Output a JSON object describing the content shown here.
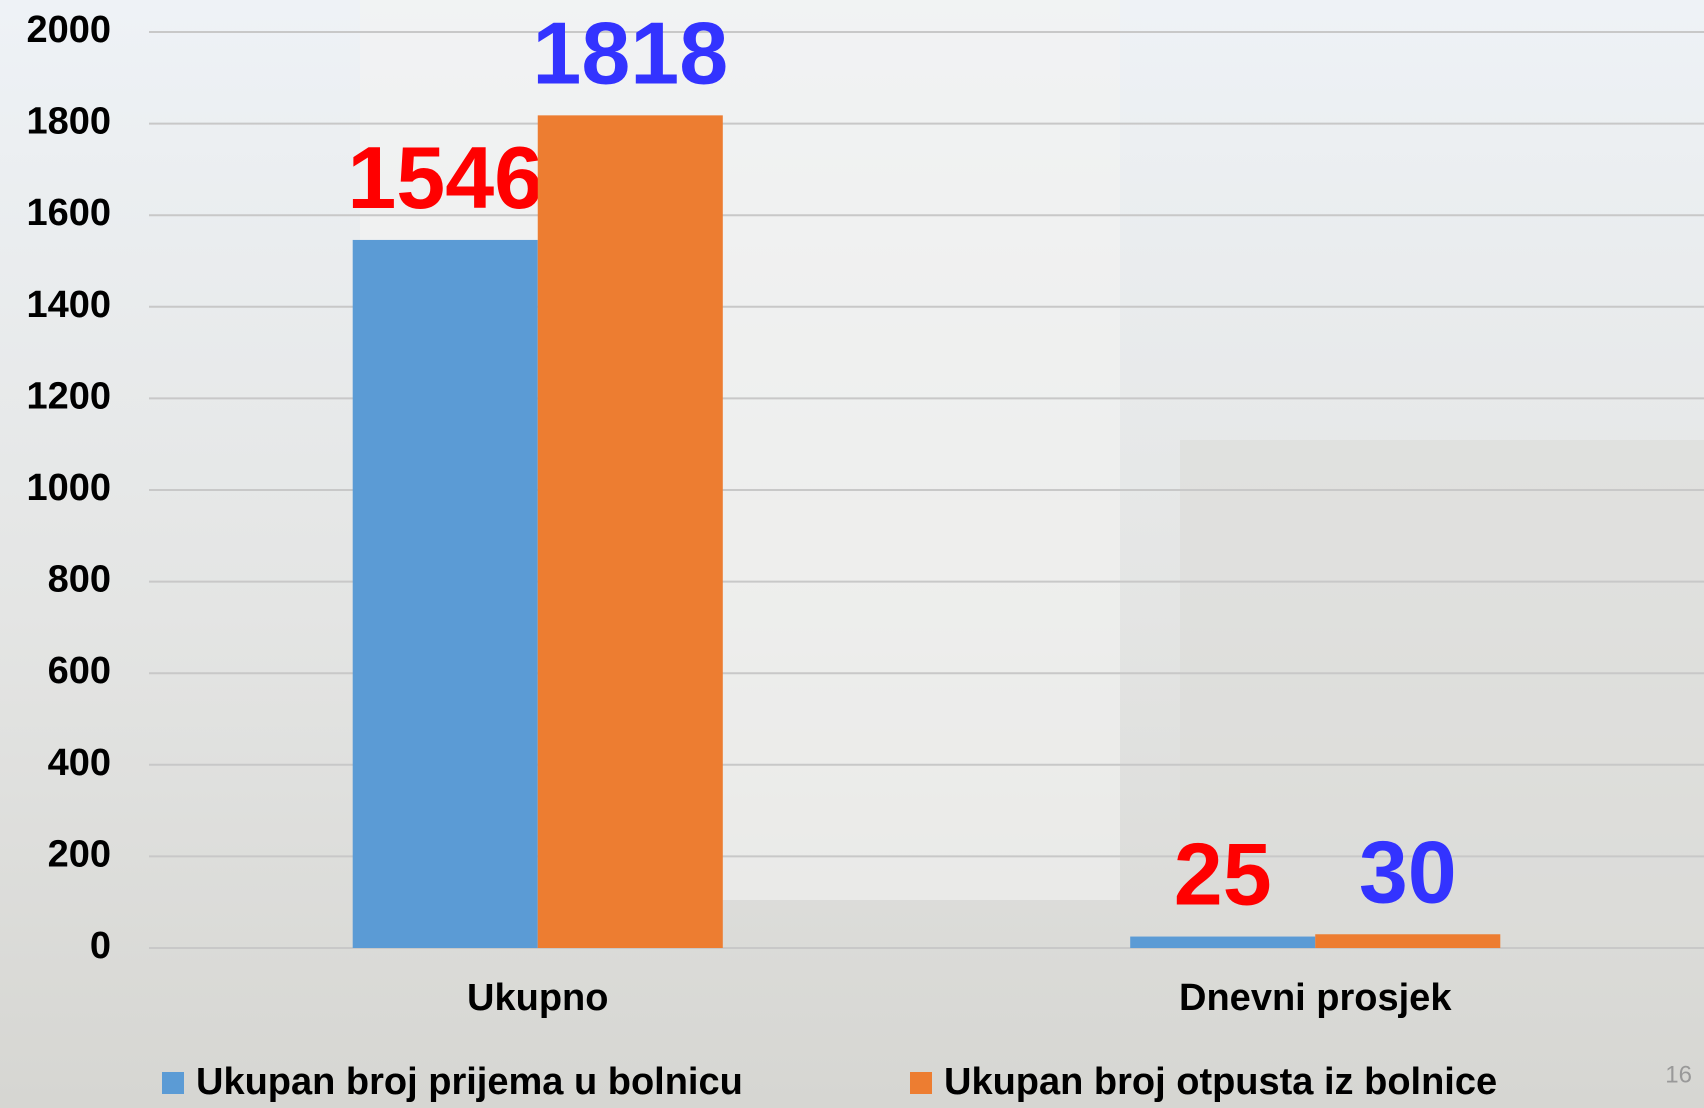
{
  "chart_data": {
    "type": "bar",
    "categories": [
      "Ukupno",
      "Dnevni prosjek"
    ],
    "series": [
      {
        "name": "Ukupan broj prijema u bolnicu",
        "color": "#5b9bd5",
        "label_color": "#ff0000",
        "values": [
          1546,
          25
        ]
      },
      {
        "name": "Ukupan broj otpusta iz bolnice",
        "color": "#ed7d31",
        "label_color": "#3333ff",
        "values": [
          1818,
          30
        ]
      }
    ],
    "ylim": [
      0,
      2000
    ],
    "yticks": [
      0,
      200,
      400,
      600,
      800,
      1000,
      1200,
      1400,
      1600,
      1800,
      2000
    ],
    "grid": true,
    "legend": "bottom"
  },
  "page_number": "16"
}
